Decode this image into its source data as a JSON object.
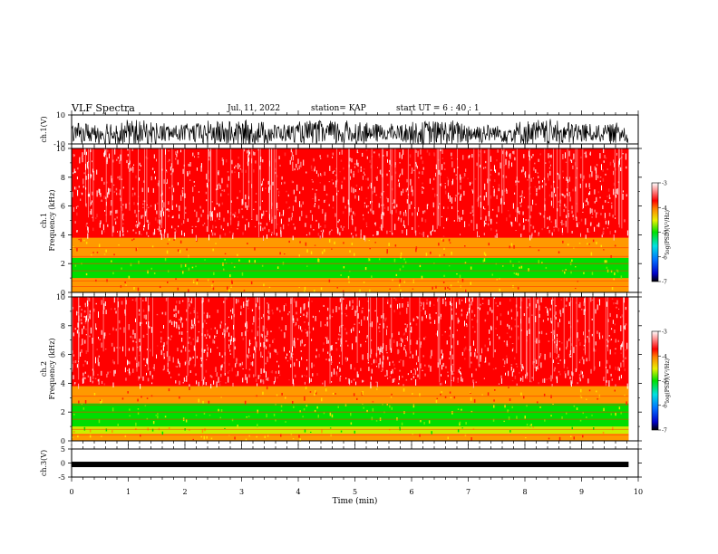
{
  "header": {
    "title": "VLF Spectra",
    "date": "Jul. 11, 2022",
    "station": "station= KAP",
    "start": "start UT =  6 : 40 : 1"
  },
  "chart_data": [
    {
      "type": "line",
      "name": "ch1-waveform",
      "ylabel": "ch.1(V)",
      "ylim": [
        -10,
        10
      ],
      "ytick_labels": [
        "10",
        "-10"
      ],
      "xlim": [
        0,
        10
      ],
      "x_extent": [
        0,
        9.83
      ],
      "description_values": {
        "min": -10,
        "max": 10
      }
    },
    {
      "type": "heatmap",
      "name": "ch1-spectrogram",
      "ylabel": "ch.1\nFrequency (kHz)",
      "ylim": [
        0,
        10
      ],
      "ytick_labels": [
        "0",
        "2",
        "4",
        "6",
        "8",
        "10"
      ],
      "xlim": [
        0,
        10
      ],
      "x_extent": [
        0,
        9.83
      ],
      "colorbar": {
        "label": "log(PSD)(V²/Hz)",
        "range": [
          -7,
          -3
        ],
        "tick_labels": [
          "-3",
          "-4",
          "-5",
          "-6",
          "-7"
        ]
      },
      "bands_khz": [
        {
          "from": 0.0,
          "to": 0.6,
          "level": -4.3
        },
        {
          "from": 0.6,
          "to": 1.0,
          "level": -4.5
        },
        {
          "from": 1.0,
          "to": 2.4,
          "level": -5.0
        },
        {
          "from": 2.4,
          "to": 3.8,
          "level": -4.5
        },
        {
          "from": 3.8,
          "to": 10.0,
          "level": -3.5
        }
      ]
    },
    {
      "type": "heatmap",
      "name": "ch2-spectrogram",
      "ylabel": "ch.2\nFrequency (kHz)",
      "ylim": [
        0,
        10
      ],
      "ytick_labels": [
        "0",
        "2",
        "4",
        "6",
        "8",
        "10"
      ],
      "xlim": [
        0,
        10
      ],
      "x_extent": [
        0,
        9.83
      ],
      "colorbar": {
        "label": "log(PSD)(V²/Hz)",
        "range": [
          -7,
          -3
        ],
        "tick_labels": [
          "-3",
          "-4",
          "-5",
          "-6",
          "-7"
        ]
      },
      "bands_khz": [
        {
          "from": 0.0,
          "to": 0.5,
          "level": -4.3
        },
        {
          "from": 0.5,
          "to": 1.0,
          "level": -4.6
        },
        {
          "from": 1.0,
          "to": 2.6,
          "level": -5.0
        },
        {
          "from": 2.6,
          "to": 3.8,
          "level": -4.5
        },
        {
          "from": 3.8,
          "to": 10.0,
          "level": -3.3
        }
      ]
    },
    {
      "type": "line",
      "name": "ch3-waveform",
      "ylabel": "ch.3(V)",
      "ylim": [
        -5,
        5
      ],
      "ytick_labels": [
        "5",
        "0",
        "-5"
      ],
      "xlim": [
        0,
        10
      ],
      "x_extent": [
        0,
        9.83
      ],
      "level": -0.5,
      "xlabel": "Time (min)",
      "xtick_labels": [
        "0",
        "1",
        "2",
        "3",
        "4",
        "5",
        "6",
        "7",
        "8",
        "9",
        "10"
      ]
    }
  ]
}
